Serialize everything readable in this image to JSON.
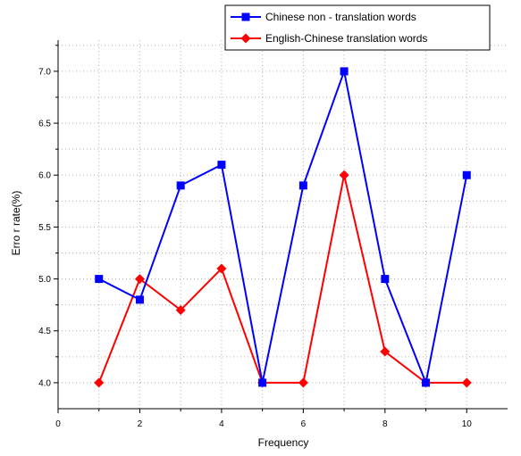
{
  "chart_data": {
    "type": "line",
    "title": "",
    "xlabel": "Frequency",
    "ylabel": "Erro r rate(%)",
    "xlim": [
      0,
      11
    ],
    "ylim": [
      3.75,
      7.3
    ],
    "x_ticks": [
      0,
      2,
      4,
      6,
      8,
      10
    ],
    "y_ticks": [
      4.0,
      4.5,
      5.0,
      5.5,
      6.0,
      6.5,
      7.0
    ],
    "x_tick_labels": [
      "0",
      "2",
      "4",
      "6",
      "8",
      "10"
    ],
    "y_tick_labels": [
      "4.0",
      "4.5",
      "5.0",
      "5.5",
      "6.0",
      "6.5",
      "7.0"
    ],
    "grid": true,
    "legend_position": "top-right",
    "x": [
      1,
      2,
      3,
      4,
      5,
      6,
      7,
      8,
      9,
      10
    ],
    "series": [
      {
        "name": "Chinese non - translation words",
        "color": "#0000ff",
        "marker": "square",
        "values": [
          5.0,
          4.8,
          5.9,
          6.1,
          4.0,
          5.9,
          7.0,
          5.0,
          4.0,
          6.0
        ]
      },
      {
        "name": "English-Chinese translation words",
        "color": "#ff0000",
        "marker": "diamond",
        "values": [
          4.0,
          5.0,
          4.7,
          5.1,
          4.0,
          4.0,
          6.0,
          4.3,
          4.0,
          4.0
        ]
      }
    ]
  }
}
